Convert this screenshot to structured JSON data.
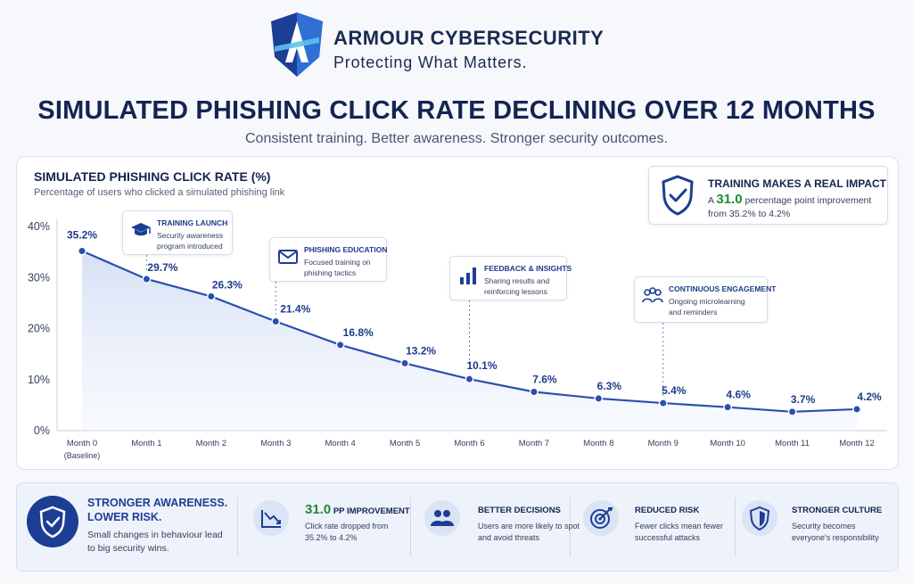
{
  "brand": {
    "name": "ARMOUR CYBERSECURITY",
    "tagline": "Protecting What Matters."
  },
  "header": {
    "title": "SIMULATED PHISHING CLICK RATE DECLINING OVER 12 MONTHS",
    "subtitle": "Consistent training. Better awareness. Stronger security outcomes."
  },
  "colors": {
    "line": "#2a4fb0",
    "accent_green": "#1f8a3a",
    "navy": "#142452"
  },
  "chart_data": {
    "type": "line",
    "title": "SIMULATED PHISHING CLICK RATE (%)",
    "subtitle": "Percentage of users who clicked a simulated phishing link",
    "categories": [
      "Month 0",
      "Month 1",
      "Month 2",
      "Month 3",
      "Month 4",
      "Month 5",
      "Month 6",
      "Month 7",
      "Month 8",
      "Month 9",
      "Month 10",
      "Month 11",
      "Month 12"
    ],
    "category_note": {
      "index": 0,
      "text": "(Baseline)"
    },
    "values": [
      35.2,
      29.7,
      26.3,
      21.4,
      16.8,
      13.2,
      10.1,
      7.6,
      6.3,
      5.4,
      4.6,
      3.7,
      4.2
    ],
    "data_labels": [
      "35.2%",
      "29.7%",
      "26.3%",
      "21.4%",
      "16.8%",
      "13.2%",
      "10.1%",
      "7.6%",
      "6.3%",
      "5.4%",
      "4.6%",
      "3.7%",
      "4.2%"
    ],
    "yticks": [
      0,
      10,
      20,
      30,
      40
    ],
    "ytick_labels": [
      "0%",
      "10%",
      "20%",
      "30%",
      "40%"
    ],
    "ylim": [
      0,
      40
    ],
    "grid": false,
    "area_fill": true,
    "milestones": [
      {
        "month": 1,
        "title": "TRAINING LAUNCH",
        "text": "Security awareness program introduced",
        "icon": "graduation-cap-icon"
      },
      {
        "month": 3,
        "title": "PHISHING EDUCATION",
        "text": "Focused training on phishing tactics",
        "icon": "envelope-icon"
      },
      {
        "month": 6,
        "title": "FEEDBACK & INSIGHTS",
        "text": "Sharing results and reinforcing lessons",
        "icon": "bar-chart-icon"
      },
      {
        "month": 9,
        "title": "CONTINUOUS ENGAGEMENT",
        "text": "Ongoing microlearning and reminders",
        "icon": "people-icon"
      }
    ]
  },
  "impact": {
    "title": "TRAINING MAKES A REAL IMPACT",
    "text_prefix": "A",
    "value": "31.0",
    "text_suffix": "percentage point improvement from 35.2% to 4.2%",
    "icon": "shield-check-icon"
  },
  "bottom": {
    "hero": {
      "title": "STRONGER AWARENESS. LOWER RISK.",
      "text": "Small changes in behaviour lead to big security wins.",
      "icon": "shield-check-icon"
    },
    "items": [
      {
        "value": "31.0",
        "title": "PP IMPROVEMENT",
        "text": "Click rate dropped from 35.2% to 4.2%",
        "icon": "trend-down-icon"
      },
      {
        "title": "BETTER DECISIONS",
        "text": "Users are more likely to spot and avoid threats",
        "icon": "users-icon"
      },
      {
        "title": "REDUCED RISK",
        "text": "Fewer clicks mean fewer successful attacks",
        "icon": "target-icon"
      },
      {
        "title": "STRONGER CULTURE",
        "text": "Security becomes everyone's responsibility",
        "icon": "shield-icon"
      }
    ]
  }
}
